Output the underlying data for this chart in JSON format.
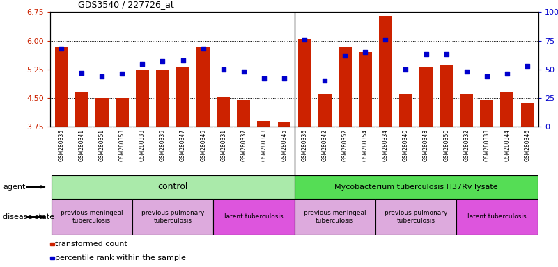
{
  "title": "GDS3540 / 227726_at",
  "samples": [
    "GSM280335",
    "GSM280341",
    "GSM280351",
    "GSM280353",
    "GSM280333",
    "GSM280339",
    "GSM280347",
    "GSM280349",
    "GSM280331",
    "GSM280337",
    "GSM280343",
    "GSM280345",
    "GSM280336",
    "GSM280342",
    "GSM280352",
    "GSM280354",
    "GSM280334",
    "GSM280340",
    "GSM280348",
    "GSM280350",
    "GSM280332",
    "GSM280338",
    "GSM280344",
    "GSM280346"
  ],
  "bar_values": [
    5.85,
    4.65,
    4.5,
    4.5,
    5.25,
    5.25,
    5.3,
    5.85,
    4.52,
    4.45,
    3.9,
    3.88,
    6.05,
    4.62,
    5.85,
    5.7,
    6.65,
    4.62,
    5.3,
    5.35,
    4.62,
    4.45,
    4.65,
    4.38
  ],
  "dot_values": [
    68,
    47,
    44,
    46,
    55,
    57,
    58,
    68,
    50,
    48,
    42,
    42,
    76,
    40,
    62,
    65,
    76,
    50,
    63,
    63,
    48,
    44,
    46,
    53
  ],
  "ylim_left": [
    3.75,
    6.75
  ],
  "ylim_right": [
    0,
    100
  ],
  "yticks_left": [
    3.75,
    4.5,
    5.25,
    6.0,
    6.75
  ],
  "yticks_right": [
    0,
    25,
    50,
    75,
    100
  ],
  "bar_color": "#cc2200",
  "dot_color": "#0000cc",
  "agent_control_label": "control",
  "agent_treatment_label": "Mycobacterium tuberculosis H37Rv lysate",
  "agent_control_color": "#aaeaaa",
  "agent_treatment_color": "#55dd55",
  "groups": [
    {
      "label": "previous meningeal\ntuberculosis",
      "color": "#ddaadd",
      "start": 0,
      "end": 4
    },
    {
      "label": "previous pulmonary\ntuberculosis",
      "color": "#ddaadd",
      "start": 4,
      "end": 8
    },
    {
      "label": "latent tuberculosis",
      "color": "#dd55dd",
      "start": 8,
      "end": 12
    },
    {
      "label": "previous meningeal\ntuberculosis",
      "color": "#ddaadd",
      "start": 12,
      "end": 16
    },
    {
      "label": "previous pulmonary\ntuberculosis",
      "color": "#ddaadd",
      "start": 16,
      "end": 20
    },
    {
      "label": "latent tuberculosis",
      "color": "#dd55dd",
      "start": 20,
      "end": 24
    }
  ],
  "legend_bar_label": "transformed count",
  "legend_dot_label": "percentile rank within the sample",
  "xtick_bg_color": "#cccccc",
  "agent_bg_color": "#ffffff",
  "disease_bg_color": "#ffffff"
}
